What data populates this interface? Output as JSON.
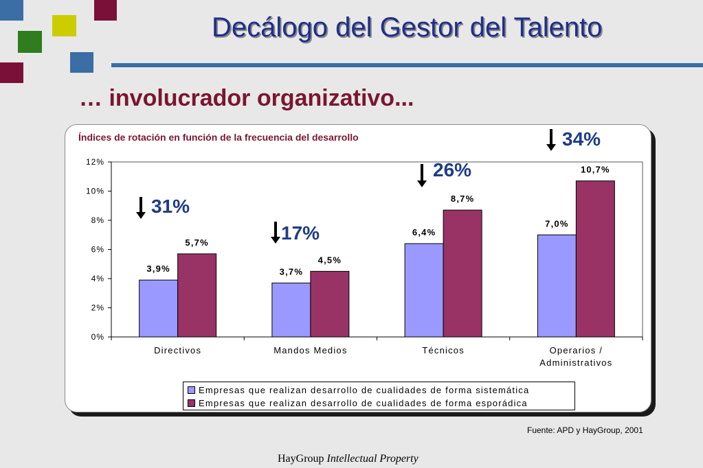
{
  "title": "Decálogo del Gestor del Talento",
  "subtitle": "… involucrador organizativo...",
  "source": "Fuente: APD y HayGroup, 2001",
  "footer": {
    "brand": "HayGroup",
    "tagline": "Intellectual Property"
  },
  "decor_colors": [
    "#3a6ea5",
    "#cccc00",
    "#7a1038",
    "#2e7d1e"
  ],
  "annotations": [
    {
      "text": "31%",
      "icon": "down-arrow-icon",
      "category": "Directivos"
    },
    {
      "text": "17%",
      "icon": "down-arrow-icon",
      "category": "Mandos Medios"
    },
    {
      "text": "26%",
      "icon": "down-arrow-icon",
      "category": "Técnicos"
    },
    {
      "text": "34%",
      "icon": "down-arrow-icon",
      "category": "Operarios / Administrativos"
    }
  ],
  "chart_data": {
    "type": "bar",
    "title": "Índices de rotación en función de la frecuencia del desarrollo",
    "xlabel": "",
    "ylabel": "",
    "categories": [
      "Directivos",
      "Mandos Medios",
      "Técnicos",
      "Operarios / Administrativos"
    ],
    "yticks": [
      "0%",
      "2%",
      "4%",
      "6%",
      "8%",
      "10%",
      "12%"
    ],
    "ylim": [
      0,
      12
    ],
    "grid": false,
    "legend_position": "bottom",
    "series": [
      {
        "name": "Empresas que realizan desarrollo de cualidades de forma sistemática",
        "color": "#9999ff",
        "values": [
          3.9,
          3.7,
          6.4,
          7.0
        ],
        "labels": [
          "3,9%",
          "3,7%",
          "6,4%",
          "7,0%"
        ]
      },
      {
        "name": "Empresas que realizan desarrollo de cualidades de forma esporádica",
        "color": "#993366",
        "values": [
          5.7,
          4.5,
          8.7,
          10.7
        ],
        "labels": [
          "5,7%",
          "4,5%",
          "8,7%",
          "10,7%"
        ]
      }
    ]
  }
}
